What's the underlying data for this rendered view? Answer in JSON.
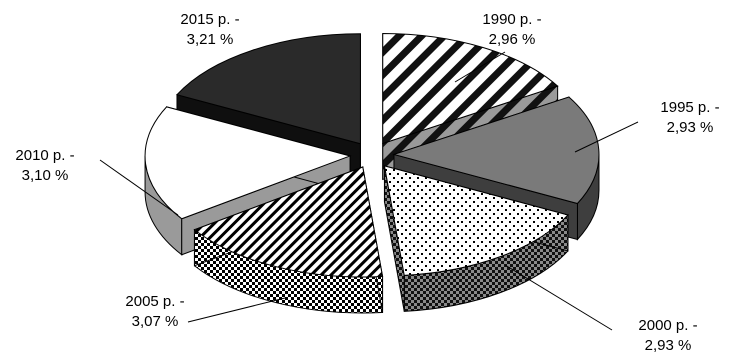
{
  "chart_data": {
    "type": "pie",
    "variant": "exploded-3d",
    "slices": [
      {
        "label_line1": "1990 р. -",
        "label_line2": "2,96 %",
        "value": 2.96,
        "pattern": "diagonal-stripes"
      },
      {
        "label_line1": "1995 р. -",
        "label_line2": "2,93 %",
        "value": 2.93,
        "pattern": "solid-gray"
      },
      {
        "label_line1": "2000 р. -",
        "label_line2": "2,93 %",
        "value": 2.93,
        "pattern": "dotted"
      },
      {
        "label_line1": "2005 р. -",
        "label_line2": "3,07 %",
        "value": 3.07,
        "pattern": "fine-diagonal"
      },
      {
        "label_line1": "2010 р. -",
        "label_line2": "3,10 %",
        "value": 3.1,
        "pattern": "white"
      },
      {
        "label_line1": "2015 р. -",
        "label_line2": "3,21 %",
        "value": 3.21,
        "pattern": "solid-black"
      }
    ],
    "legend": "none",
    "colors": {
      "solid_gray": "#7a7a7a",
      "solid_black": "#262626",
      "white": "#ffffff",
      "outline": "#000000"
    }
  }
}
